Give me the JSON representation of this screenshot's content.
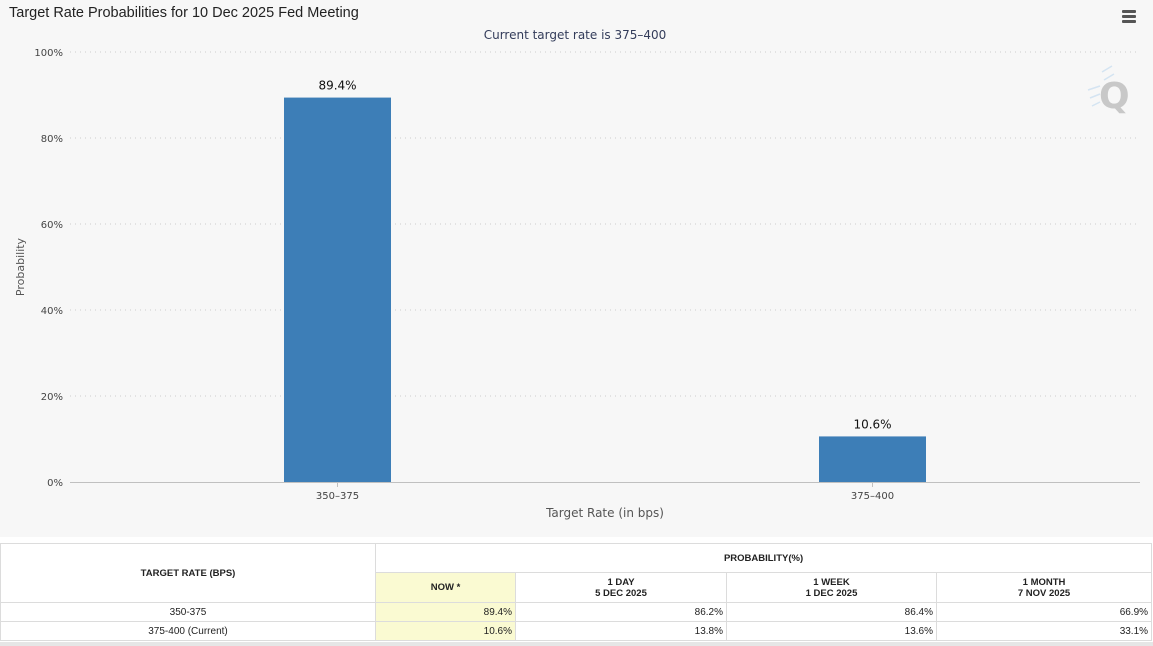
{
  "chart": {
    "title": "Target Rate Probabilities for 10 Dec 2025 Fed Meeting",
    "subtitle": "Current target rate is 375–400",
    "menu_icon": "hamburger-menu-icon",
    "watermark_icon": "q-logo-icon"
  },
  "chart_data": {
    "type": "bar",
    "title": "Target Rate Probabilities for 10 Dec 2025 Fed Meeting",
    "subtitle": "Current target rate is 375–400",
    "categories": [
      "350–375",
      "375–400"
    ],
    "values": [
      89.4,
      10.6
    ],
    "data_labels": [
      "89.4%",
      "10.6%"
    ],
    "xlabel": "Target Rate (in bps)",
    "ylabel": "Probability",
    "ylim": [
      0,
      100
    ],
    "yticks": [
      0,
      20,
      40,
      60,
      80,
      100
    ],
    "ytick_labels": [
      "0%",
      "20%",
      "40%",
      "60%",
      "80%",
      "100%"
    ],
    "grid": true,
    "bar_color": "#3d7eb7"
  },
  "table": {
    "target_rate_header": "TARGET RATE (BPS)",
    "probability_header": "PROBABILITY(%)",
    "columns": [
      {
        "line1": "NOW *",
        "line2": ""
      },
      {
        "line1": "1 DAY",
        "line2": "5 DEC 2025"
      },
      {
        "line1": "1 WEEK",
        "line2": "1 DEC 2025"
      },
      {
        "line1": "1 MONTH",
        "line2": "7 NOV 2025"
      }
    ],
    "rows": [
      {
        "rate": "350-375",
        "values": [
          "89.4%",
          "86.2%",
          "86.4%",
          "66.9%"
        ]
      },
      {
        "rate": "375-400 (Current)",
        "values": [
          "10.6%",
          "13.8%",
          "13.6%",
          "33.1%"
        ]
      }
    ],
    "now_highlight_color": "#fafad2"
  }
}
